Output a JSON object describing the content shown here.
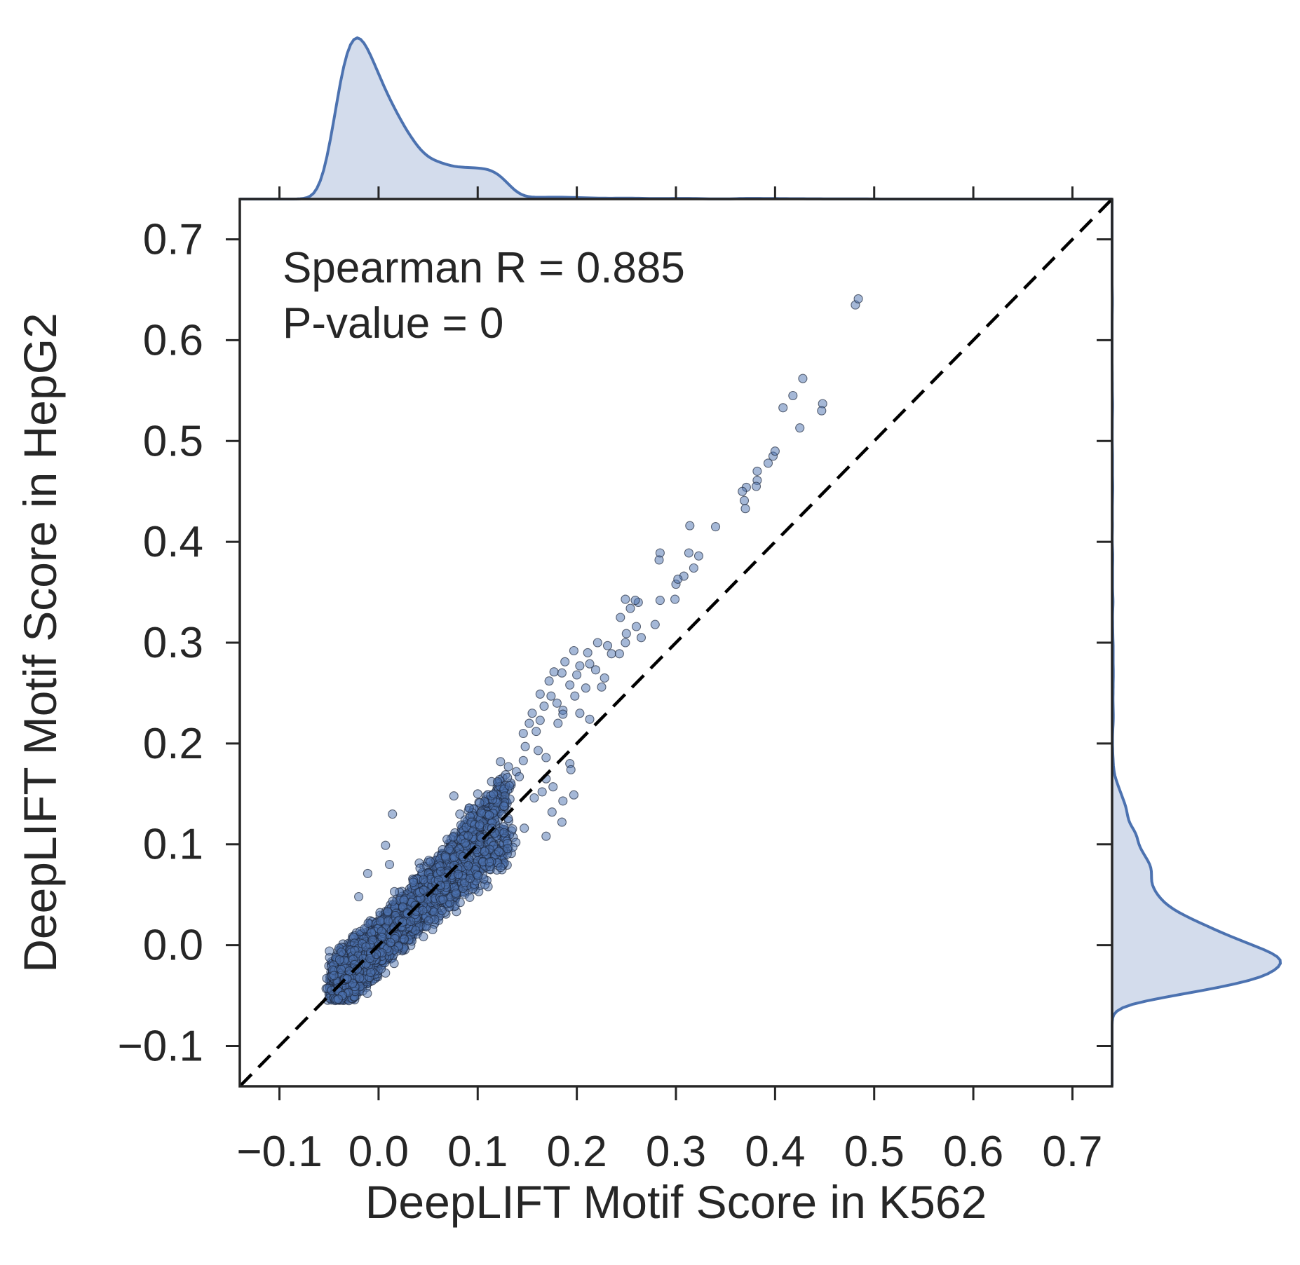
{
  "chart_data": {
    "type": "scatter",
    "xlabel": "DeepLIFT Motif Score in K562",
    "ylabel": "DeepLIFT Motif Score in HepG2",
    "xlim": [
      -0.14,
      0.74
    ],
    "ylim": [
      -0.14,
      0.74
    ],
    "x_ticks": [
      "−0.1",
      "0.0",
      "0.1",
      "0.2",
      "0.3",
      "0.4",
      "0.5",
      "0.6",
      "0.7"
    ],
    "y_ticks": [
      "−0.1",
      "0.0",
      "0.1",
      "0.2",
      "0.3",
      "0.4",
      "0.5",
      "0.6",
      "0.7"
    ],
    "x_tick_values": [
      -0.1,
      0.0,
      0.1,
      0.2,
      0.3,
      0.4,
      0.5,
      0.6,
      0.7
    ],
    "y_tick_values": [
      -0.1,
      0.0,
      0.1,
      0.2,
      0.3,
      0.4,
      0.5,
      0.6,
      0.7
    ],
    "annotation": [
      "Spearman R = 0.885",
      "P-value = 0"
    ],
    "reference_line": "y = x (dashed black)",
    "grid": false,
    "marginal_distributions": "kde on top (x) and right (y), filled",
    "colors": {
      "points": "#4c72b0",
      "kde_line": "#4c72b0",
      "kde_fill": "#d3dcec",
      "diagonal": "#000000",
      "axes": "#262626"
    },
    "series": [
      {
        "outliers": [
          [
            0.481,
            0.635
          ],
          [
            0.484,
            0.641
          ],
          [
            0.448,
            0.537
          ],
          [
            0.447,
            0.53
          ],
          [
            0.428,
            0.562
          ],
          [
            0.425,
            0.513
          ],
          [
            0.418,
            0.545
          ],
          [
            0.408,
            0.533
          ],
          [
            0.398,
            0.485
          ],
          [
            0.4,
            0.49
          ],
          [
            0.393,
            0.478
          ],
          [
            0.382,
            0.47
          ],
          [
            0.382,
            0.461
          ],
          [
            0.381,
            0.455
          ],
          [
            0.371,
            0.454
          ],
          [
            0.369,
            0.441
          ],
          [
            0.37,
            0.433
          ],
          [
            0.367,
            0.45
          ],
          [
            0.34,
            0.415
          ],
          [
            0.314,
            0.416
          ],
          [
            0.313,
            0.389
          ],
          [
            0.323,
            0.386
          ],
          [
            0.318,
            0.374
          ],
          [
            0.308,
            0.366
          ],
          [
            0.299,
            0.343
          ],
          [
            0.3,
            0.358
          ],
          [
            0.302,
            0.363
          ],
          [
            0.284,
            0.389
          ],
          [
            0.283,
            0.382
          ],
          [
            0.284,
            0.342
          ],
          [
            0.262,
            0.34
          ],
          [
            0.259,
            0.342
          ],
          [
            0.254,
            0.334
          ],
          [
            0.244,
            0.325
          ],
          [
            0.249,
            0.343
          ],
          [
            0.26,
            0.316
          ],
          [
            0.279,
            0.318
          ],
          [
            0.265,
            0.305
          ],
          [
            0.249,
            0.3
          ],
          [
            0.25,
            0.309
          ],
          [
            0.231,
            0.297
          ],
          [
            0.235,
            0.289
          ],
          [
            0.243,
            0.289
          ],
          [
            0.221,
            0.3
          ],
          [
            0.211,
            0.29
          ],
          [
            0.197,
            0.292
          ],
          [
            0.213,
            0.279
          ],
          [
            0.203,
            0.277
          ],
          [
            0.219,
            0.273
          ],
          [
            0.228,
            0.265
          ],
          [
            0.225,
            0.256
          ],
          [
            0.209,
            0.255
          ],
          [
            0.2,
            0.268
          ],
          [
            0.193,
            0.258
          ],
          [
            0.198,
            0.247
          ],
          [
            0.185,
            0.27
          ],
          [
            0.177,
            0.271
          ],
          [
            0.188,
            0.281
          ],
          [
            0.172,
            0.262
          ],
          [
            0.174,
            0.247
          ],
          [
            0.163,
            0.249
          ],
          [
            0.167,
            0.237
          ],
          [
            0.186,
            0.233
          ],
          [
            0.186,
            0.229
          ],
          [
            0.18,
            0.24
          ],
          [
            0.181,
            0.22
          ],
          [
            0.203,
            0.23
          ],
          [
            0.155,
            0.23
          ],
          [
            0.152,
            0.22
          ],
          [
            0.163,
            0.223
          ],
          [
            0.159,
            0.212
          ],
          [
            0.146,
            0.21
          ],
          [
            0.148,
            0.197
          ],
          [
            0.146,
            0.183
          ],
          [
            0.131,
            0.177
          ],
          [
            0.123,
            0.182
          ],
          [
            0.139,
            0.172
          ],
          [
            0.142,
            0.167
          ],
          [
            0.161,
            0.193
          ],
          [
            0.169,
            0.186
          ],
          [
            0.193,
            0.18
          ],
          [
            0.194,
            0.174
          ],
          [
            0.197,
            0.149
          ],
          [
            0.169,
            0.165
          ],
          [
            0.165,
            0.152
          ],
          [
            0.186,
            0.143
          ],
          [
            0.176,
            0.157
          ],
          [
            0.157,
            0.146
          ],
          [
            0.175,
            0.132
          ],
          [
            0.185,
            0.122
          ],
          [
            0.169,
            0.108
          ],
          [
            0.147,
            0.116
          ],
          [
            0.116,
            0.15
          ],
          [
            0.1,
            0.15
          ],
          [
            0.102,
            0.141
          ],
          [
            0.082,
            0.13
          ],
          [
            0.014,
            0.13
          ],
          [
            0.007,
            0.099
          ],
          [
            0.011,
            0.08
          ],
          [
            -0.011,
            0.071
          ],
          [
            0.016,
            0.053
          ],
          [
            -0.02,
            0.048
          ],
          [
            0.12,
            0.162
          ],
          [
            0.132,
            0.158
          ],
          [
            0.213,
            0.224
          ],
          [
            0.076,
            0.148
          ]
        ],
        "dense_cloud": {
          "description": "thousands of overlapping points clustered along the diagonal between about -0.06 and 0.15 on both axes, with a lower band up to x = 0.15",
          "estimated_count": 5000
        }
      }
    ]
  }
}
